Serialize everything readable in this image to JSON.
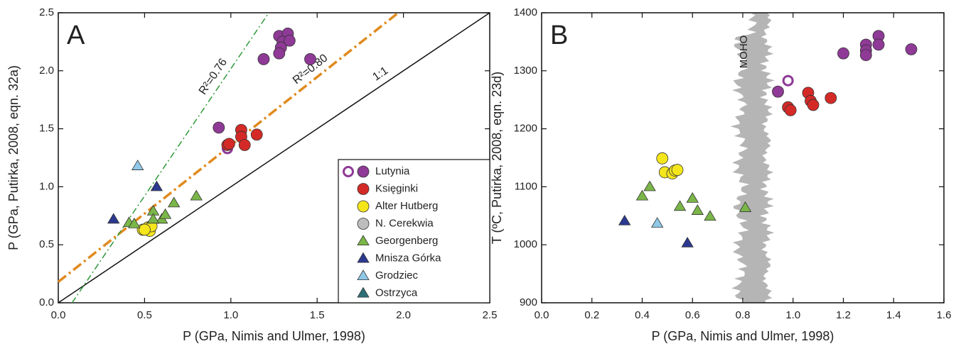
{
  "chart_data": [
    {
      "type": "scatter",
      "panel": "A",
      "xlabel": "P (GPa, Nimis and Ulmer, 1998)",
      "ylabel": "P (GPa, Putirka, 2008, eqn. 32a)",
      "xlim": [
        0,
        2.5
      ],
      "ylim": [
        0,
        2.5
      ],
      "xticks": [
        {
          "value": 0,
          "label": "0.0"
        },
        0.5,
        {
          "value": 1,
          "label": "1.0"
        },
        1.5,
        {
          "value": 2,
          "label": "2.0"
        },
        2.5
      ],
      "yticks": [
        {
          "value": 0,
          "label": "0.0"
        },
        0.5,
        {
          "value": 1,
          "label": "1.0"
        },
        1.5,
        {
          "value": 2,
          "label": "2.0"
        },
        2.5
      ],
      "legend": "lower right",
      "lines": [
        {
          "label": "1:1",
          "color": "#111111",
          "style": "solid",
          "x": [
            0,
            2.5
          ],
          "y": [
            0,
            2.5
          ]
        },
        {
          "label": "R²=0.80",
          "color": "#e08a1e",
          "style": "dashdot",
          "x": [
            0,
            1.97
          ],
          "y": [
            0.18,
            2.5
          ]
        },
        {
          "label": "R²=0.76",
          "color": "#2f9a3a",
          "style": "dashdotthin",
          "x": [
            0.08,
            1.22
          ],
          "y": [
            0,
            2.5
          ]
        }
      ],
      "series": [
        {
          "name": "Lutynia",
          "color": "#8e3a96",
          "marker": "circle",
          "x": [
            1.28,
            1.33,
            1.3,
            1.34,
            1.29,
            1.28,
            1.19,
            1.46,
            0.93
          ],
          "y": [
            2.3,
            2.32,
            2.25,
            2.26,
            2.2,
            2.15,
            2.1,
            2.1,
            1.51
          ],
          "open_x": [
            0.98
          ],
          "open_y": [
            1.33
          ]
        },
        {
          "name": "Księginki",
          "color": "#d42a27",
          "marker": "circle",
          "x": [
            0.98,
            1.06,
            1.06,
            1.08,
            1.15,
            0.99
          ],
          "y": [
            1.36,
            1.49,
            1.43,
            1.36,
            1.45,
            1.37
          ]
        },
        {
          "name": "Alter Hutberg",
          "color": "#f5e61c",
          "marker": "circle",
          "x": [
            0.49,
            0.52,
            0.53,
            0.54,
            0.5
          ],
          "y": [
            0.63,
            0.65,
            0.62,
            0.66,
            0.63
          ]
        },
        {
          "name": "N. Cerekwia",
          "color": "#bdbdbd",
          "marker": "circle",
          "x": [],
          "y": []
        },
        {
          "name": "Georgenberg",
          "color": "#7ab648",
          "marker": "triangle",
          "x": [
            0.41,
            0.44,
            0.55,
            0.6,
            0.62,
            0.67,
            0.8,
            0.55
          ],
          "y": [
            0.69,
            0.68,
            0.79,
            0.72,
            0.76,
            0.86,
            0.92,
            0.72
          ]
        },
        {
          "name": "Mnisza Górka",
          "color": "#2b3990",
          "marker": "triangle",
          "x": [
            0.32,
            0.57
          ],
          "y": [
            0.72,
            1.0
          ]
        },
        {
          "name": "Grodziec",
          "color": "#8fc8e8",
          "marker": "triangle",
          "x": [
            0.46
          ],
          "y": [
            1.18
          ]
        },
        {
          "name": "Ostrzyca",
          "color": "#2e6f77",
          "marker": "triangle",
          "x": [],
          "y": []
        }
      ]
    },
    {
      "type": "scatter",
      "panel": "B",
      "annotation": "MOHO",
      "xlabel": "P (GPa, Nimis and Ulmer, 1998)",
      "ylabel": "T (ºC, Putirka, 2008, eqn. 23d)",
      "xlim": [
        0,
        1.6
      ],
      "ylim": [
        900,
        1400
      ],
      "xticks": [
        {
          "value": 0,
          "label": "0.0"
        },
        0.2,
        0.4,
        0.6,
        0.8,
        {
          "value": 1,
          "label": "1.0"
        },
        1.2,
        1.4,
        1.6
      ],
      "yticks": [
        900,
        1000,
        1100,
        1200,
        1300,
        1400
      ],
      "series": [
        {
          "color": "#8e3a96",
          "marker": "circle",
          "x": [
            1.34,
            1.29,
            1.34,
            1.29,
            1.2,
            1.29,
            1.47,
            0.94
          ],
          "y": [
            1360,
            1345,
            1345,
            1335,
            1330,
            1327,
            1337,
            1264
          ],
          "open_x": [
            0.98
          ],
          "open_y": [
            1283
          ]
        },
        {
          "color": "#d42a27",
          "marker": "circle",
          "x": [
            1.06,
            1.15,
            1.07,
            1.08,
            0.98,
            0.99
          ],
          "y": [
            1262,
            1253,
            1248,
            1241,
            1237,
            1232
          ]
        },
        {
          "color": "#f5e61c",
          "marker": "circle",
          "x": [
            0.48,
            0.49,
            0.52,
            0.53,
            0.54
          ],
          "y": [
            1149,
            1125,
            1123,
            1128,
            1129
          ]
        },
        {
          "color": "#7ab648",
          "marker": "triangle",
          "x": [
            0.43,
            0.4,
            0.6,
            0.55,
            0.62,
            0.67,
            0.81
          ],
          "y": [
            1100,
            1084,
            1080,
            1066,
            1059,
            1049,
            1064
          ]
        },
        {
          "color": "#2b3990",
          "marker": "triangle",
          "x": [
            0.33,
            0.58
          ],
          "y": [
            1041,
            1003
          ]
        },
        {
          "color": "#8fc8e8",
          "marker": "triangle",
          "x": [
            0.46
          ],
          "y": [
            1037
          ]
        }
      ]
    }
  ]
}
